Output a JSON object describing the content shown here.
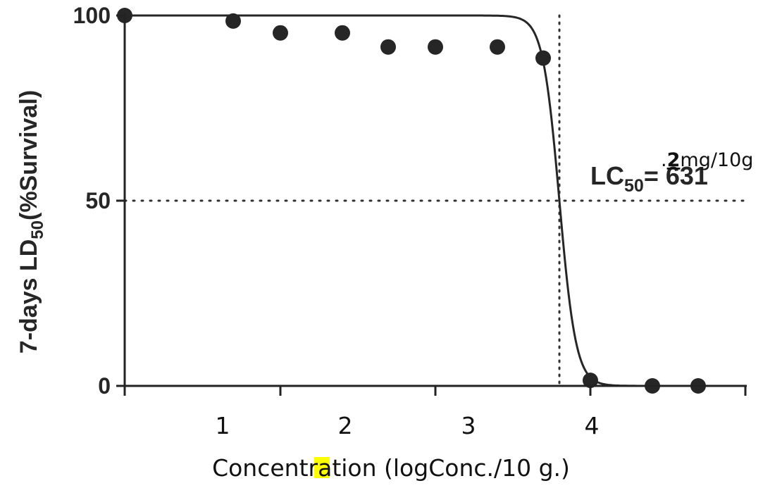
{
  "chart_data": {
    "type": "scatter",
    "title": "",
    "xlabel": "Concentration (log",
    "xlabel_highlight": "C",
    "xlabel_rest": "onc./10 g.)",
    "ylabel_main": "7-days LD",
    "ylabel_sub": "50",
    "ylabel_rest": "(%Survival)",
    "ylim": [
      0,
      100
    ],
    "xlim": [
      0.25,
      4.5
    ],
    "x_ticks": [
      1,
      2,
      3,
      4
    ],
    "x_tick_labels": [
      "1",
      "2",
      "3",
      "4"
    ],
    "y_ticks": [
      0,
      50,
      100
    ],
    "y_tick_labels": [
      "0",
      "50",
      "100"
    ],
    "series": [
      {
        "x": [
          0.25,
          0.95,
          1.35,
          1.7,
          2.05,
          2.35,
          2.7,
          3.05,
          3.3,
          3.85,
          4.15
        ],
        "y": [
          100,
          98.5,
          95.3,
          95.3,
          91.5,
          91.5,
          91.5,
          88.5,
          1.5,
          0,
          0
        ]
      }
    ],
    "fit_curve": {
      "type": "sigmoid",
      "top": 100,
      "bottom": 0,
      "ec50": 3.1,
      "hill": 13
    },
    "reference_lines": {
      "y": 50,
      "x": 3.1,
      "style": "dotted"
    },
    "annotation": {
      "lc_prefix": "LC",
      "lc_sub": "50",
      "lc_value": "= 631",
      "unit_prefix": ".",
      "unit_bold": "2",
      "unit_rest": "mg/10g"
    },
    "grid": false,
    "legend": "none",
    "colors": {
      "axis": "#222222",
      "points": "#262626",
      "curve": "#262626",
      "highlight": "#ffff00"
    }
  }
}
